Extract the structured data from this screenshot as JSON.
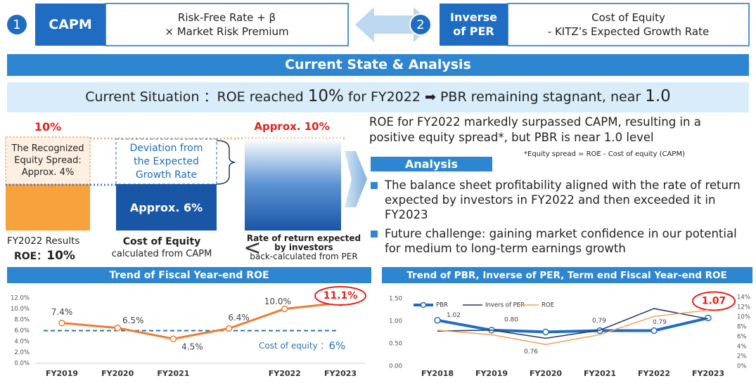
{
  "header": {
    "method1": {
      "number": "1",
      "name": "CAPM",
      "formula": [
        "Risk-Free Rate + β",
        "× Market Risk Premium"
      ]
    },
    "method2": {
      "number": "2",
      "name": [
        "Inverse",
        "of PER"
      ],
      "formula": [
        "Cost of Equity",
        "- KITZ’s Expected Growth Rate"
      ]
    }
  },
  "banner": "Current State & Analysis",
  "situation": [
    "Current Situation ：ROE reached ",
    "10%",
    " for FY2022 ",
    "➡",
    " PBR remaining stagnant, near ",
    "1.0"
  ],
  "diagram": {
    "roe_label": "10%",
    "expected_label": "Approx. 10%",
    "spread": [
      "The Recognized",
      "Equity Spread:",
      "Approx. 4%"
    ],
    "deviation": [
      "Deviation from",
      "the Expected",
      "Growth Rate"
    ],
    "cost_label": "Approx. 6%",
    "results": [
      "FY2022 Results",
      "ROE：",
      "10%"
    ],
    "cost_caption": [
      "Cost of Equity",
      "calculated from CAPM"
    ],
    "compare": "<",
    "expected_caption": [
      "Rate of return expected",
      "by investors",
      "back-calculated from PER"
    ]
  },
  "summary": {
    "text": "ROE for FY2022 markedly surpassed CAPM, resulting in a positive equity spread*, but PBR is near 1.0 level",
    "note": "*Equity spread = ROE - Cost of equity (CAPM)"
  },
  "analysis": {
    "title": "Analysis",
    "bullets": [
      "The balance sheet profitability aligned with the rate of return expected by investors in FY2022 and then exceeded it in FY2023",
      "Future challenge: gaining market confidence in our potential for medium to long-term earnings growth"
    ]
  },
  "chart_data": [
    {
      "type": "line",
      "title": "Trend of Fiscal Year-end ROE",
      "categories": [
        "FY2019",
        "FY2020",
        "FY2021",
        null,
        "FY2022",
        "FY2023"
      ],
      "values": [
        7.4,
        6.5,
        4.5,
        6.4,
        10.0,
        11.1
      ],
      "value_labels": [
        "7.4%",
        "6.5%",
        "4.5%",
        "6.4%",
        "10.0%",
        "11.1%"
      ],
      "color": "#ed7d31",
      "ylim": [
        0,
        12
      ],
      "yticks": [
        {
          "value": 0,
          "label": "0.0%"
        },
        {
          "value": 2,
          "label": "2.0%"
        },
        {
          "value": 4,
          "label": "4.0%"
        },
        {
          "value": 6,
          "label": "6.0%"
        },
        {
          "value": 8,
          "label": "8.0%"
        },
        {
          "value": 10,
          "label": "10.0%"
        },
        {
          "value": 12,
          "label": "12.0%"
        }
      ],
      "reference": {
        "value": 6,
        "label": [
          "Cost of equity ：",
          "6%"
        ],
        "color": "#2e75b6"
      }
    },
    {
      "type": "line",
      "title": "Trend of PBR, Inverse of PER, Term end Fiscal Year-end ROE",
      "categories": [
        "FY2018",
        "FY2019",
        "FY2020",
        "FY2021",
        "FY2022",
        "FY2023"
      ],
      "series": [
        {
          "name": "PBR",
          "color": "#1f6dc2",
          "values": [
            1.02,
            0.8,
            0.76,
            0.79,
            0.79,
            1.07
          ],
          "value_labels": [
            "1.02",
            "0.80",
            "0.76",
            "0.79",
            "0.79",
            "1.07"
          ]
        },
        {
          "name": "Invers of PER",
          "color": "#1f3864",
          "values": [
            0.78,
            0.8,
            0.62,
            0.8,
            1.28,
            1.05
          ]
        },
        {
          "name": "ROE",
          "color": "#f0a055",
          "axis": "y2",
          "values": [
            7.3,
            6.4,
            4.4,
            6.4,
            10.1,
            11.4
          ]
        }
      ],
      "ylim": [
        0,
        1.5
      ],
      "yticks": [
        {
          "value": 0,
          "label": "0.00"
        },
        {
          "value": 0.5,
          "label": "0.50"
        },
        {
          "value": 1,
          "label": "1.00"
        },
        {
          "value": 1.5,
          "label": "1.50"
        }
      ],
      "y2lim": [
        0,
        14
      ],
      "y2ticks": [
        {
          "value": 0,
          "label": "0%"
        },
        {
          "value": 2,
          "label": "2%"
        },
        {
          "value": 4,
          "label": "4%"
        },
        {
          "value": 6,
          "label": "6%"
        },
        {
          "value": 8,
          "label": "8%"
        },
        {
          "value": 10,
          "label": "10%"
        },
        {
          "value": 12,
          "label": "12%"
        },
        {
          "value": 14,
          "label": "14%"
        }
      ]
    }
  ]
}
